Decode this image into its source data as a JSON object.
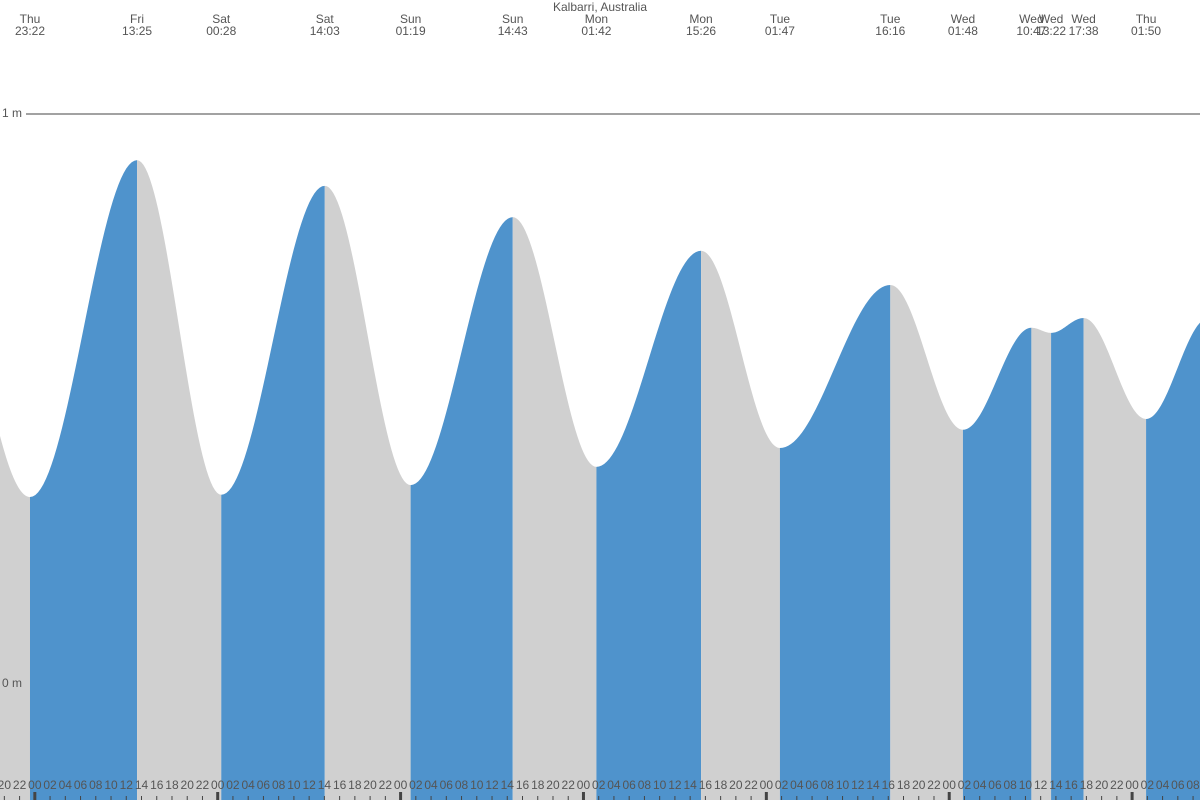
{
  "chart_data": {
    "type": "tide",
    "title": "Kalbarri, Australia",
    "rising_color": "#4f93cc",
    "falling_color": "#d0d0d0",
    "extremes": [
      {
        "day": "Thu",
        "time": "23:22",
        "height": 0.328
      },
      {
        "day": "Fri",
        "time": "13:25",
        "height": 0.919
      },
      {
        "day": "Sat",
        "time": "00:28",
        "height": 0.332
      },
      {
        "day": "Sat",
        "time": "14:03",
        "height": 0.874
      },
      {
        "day": "Sun",
        "time": "01:19",
        "height": 0.349
      },
      {
        "day": "Sun",
        "time": "14:43",
        "height": 0.819
      },
      {
        "day": "Mon",
        "time": "01:42",
        "height": 0.381
      },
      {
        "day": "Mon",
        "time": "15:26",
        "height": 0.76
      },
      {
        "day": "Tue",
        "time": "01:47",
        "height": 0.414
      },
      {
        "day": "Tue",
        "time": "16:16",
        "height": 0.7
      },
      {
        "day": "Wed",
        "time": "01:48",
        "height": 0.446
      },
      {
        "day": "Wed",
        "time": "10:47",
        "height": 0.625
      },
      {
        "day": "Wed",
        "time": "13:22",
        "height": 0.616
      },
      {
        "day": "Wed",
        "time": "17:38",
        "height": 0.642
      },
      {
        "day": "Thu",
        "time": "01:50",
        "height": 0.465
      }
    ],
    "xlim": [
      19.43,
      176.91
    ],
    "ylim": [
      -0.2035,
      1.2
    ],
    "yticks": [
      {
        "value": 1,
        "label": "1 m"
      },
      {
        "value": 0,
        "label": "0 m"
      }
    ],
    "xticks": [
      {
        "value": 20,
        "label": "20"
      },
      {
        "value": 22,
        "label": "22"
      },
      {
        "value": 24,
        "label": "00"
      },
      {
        "value": 26,
        "label": "02"
      },
      {
        "value": 28,
        "label": "04"
      },
      {
        "value": 30,
        "label": "06"
      },
      {
        "value": 32,
        "label": "08"
      },
      {
        "value": 34,
        "label": "10"
      },
      {
        "value": 36,
        "label": "12"
      },
      {
        "value": 38,
        "label": "14"
      },
      {
        "value": 40,
        "label": "16"
      },
      {
        "value": 42,
        "label": "18"
      },
      {
        "value": 44,
        "label": "20"
      },
      {
        "value": 46,
        "label": "22"
      },
      {
        "value": 48,
        "label": "00"
      },
      {
        "value": 50,
        "label": "02"
      },
      {
        "value": 52,
        "label": "04"
      },
      {
        "value": 54,
        "label": "06"
      },
      {
        "value": 56,
        "label": "08"
      },
      {
        "value": 58,
        "label": "10"
      },
      {
        "value": 60,
        "label": "12"
      },
      {
        "value": 62,
        "label": "14"
      },
      {
        "value": 64,
        "label": "16"
      },
      {
        "value": 66,
        "label": "18"
      },
      {
        "value": 68,
        "label": "20"
      },
      {
        "value": 70,
        "label": "22"
      },
      {
        "value": 72,
        "label": "00"
      },
      {
        "value": 74,
        "label": "02"
      },
      {
        "value": 76,
        "label": "04"
      },
      {
        "value": 78,
        "label": "06"
      },
      {
        "value": 80,
        "label": "08"
      },
      {
        "value": 82,
        "label": "10"
      },
      {
        "value": 84,
        "label": "12"
      },
      {
        "value": 86,
        "label": "14"
      },
      {
        "value": 88,
        "label": "16"
      },
      {
        "value": 90,
        "label": "18"
      },
      {
        "value": 92,
        "label": "20"
      },
      {
        "value": 94,
        "label": "22"
      },
      {
        "value": 96,
        "label": "00"
      },
      {
        "value": 98,
        "label": "02"
      },
      {
        "value": 100,
        "label": "04"
      },
      {
        "value": 102,
        "label": "06"
      },
      {
        "value": 104,
        "label": "08"
      },
      {
        "value": 106,
        "label": "10"
      },
      {
        "value": 108,
        "label": "12"
      },
      {
        "value": 110,
        "label": "14"
      },
      {
        "value": 112,
        "label": "16"
      },
      {
        "value": 114,
        "label": "18"
      },
      {
        "value": 116,
        "label": "20"
      },
      {
        "value": 118,
        "label": "22"
      },
      {
        "value": 120,
        "label": "00"
      },
      {
        "value": 122,
        "label": "02"
      },
      {
        "value": 124,
        "label": "04"
      },
      {
        "value": 126,
        "label": "06"
      },
      {
        "value": 128,
        "label": "08"
      },
      {
        "value": 130,
        "label": "10"
      },
      {
        "value": 132,
        "label": "12"
      },
      {
        "value": 134,
        "label": "14"
      },
      {
        "value": 136,
        "label": "16"
      },
      {
        "value": 138,
        "label": "18"
      },
      {
        "value": 140,
        "label": "20"
      },
      {
        "value": 142,
        "label": "22"
      },
      {
        "value": 144,
        "label": "00"
      },
      {
        "value": 146,
        "label": "02"
      },
      {
        "value": 148,
        "label": "04"
      },
      {
        "value": 150,
        "label": "06"
      },
      {
        "value": 152,
        "label": "08"
      },
      {
        "value": 154,
        "label": "10"
      },
      {
        "value": 156,
        "label": "12"
      },
      {
        "value": 158,
        "label": "14"
      },
      {
        "value": 160,
        "label": "16"
      },
      {
        "value": 162,
        "label": "18"
      },
      {
        "value": 164,
        "label": "20"
      },
      {
        "value": 166,
        "label": "22"
      },
      {
        "value": 168,
        "label": "00"
      },
      {
        "value": 170,
        "label": "02"
      },
      {
        "value": 172,
        "label": "04"
      },
      {
        "value": 174,
        "label": "06"
      },
      {
        "value": 176,
        "label": "08"
      }
    ]
  }
}
